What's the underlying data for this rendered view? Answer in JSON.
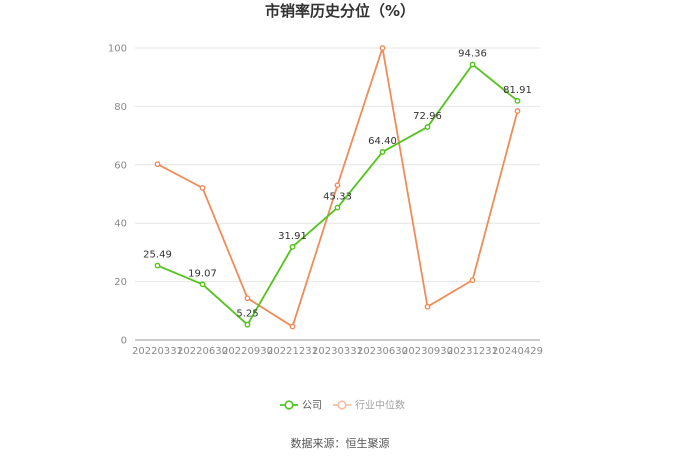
{
  "chart_data": {
    "type": "line",
    "title": "市销率历史分位（%）",
    "categories": [
      "20220331",
      "20220630",
      "20220930",
      "20221231",
      "20230331",
      "20230630",
      "20230930",
      "20231231",
      "20240429"
    ],
    "ylim": [
      0,
      100
    ],
    "yticks": [
      0,
      20,
      40,
      60,
      80,
      100
    ],
    "grid": true,
    "legend_position": "bottom-center",
    "series": [
      {
        "name": "公司",
        "color": "#52c41a",
        "values": [
          25.49,
          19.07,
          5.25,
          31.91,
          45.33,
          64.4,
          72.96,
          94.36,
          81.91
        ],
        "labels": [
          "25.49",
          "19.07",
          "5.25",
          "31.91",
          "45.33",
          "64.40",
          "72.96",
          "94.36",
          "81.91"
        ]
      },
      {
        "name": "行业中位数",
        "color": "#f08c5a",
        "values": [
          60.2,
          52.1,
          14.3,
          4.6,
          53.0,
          100.0,
          11.4,
          20.5,
          78.4
        ]
      }
    ]
  },
  "source_text": "数据来源：恒生聚源"
}
